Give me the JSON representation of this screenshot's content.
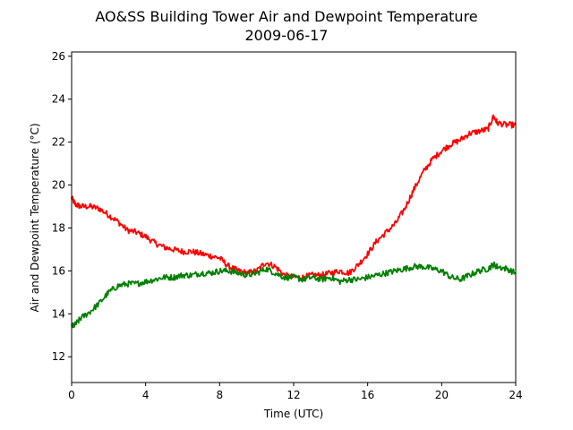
{
  "chart_data": {
    "type": "line",
    "title": "AO&SS Building Tower Air and Dewpoint Temperature",
    "subtitle": "2009-06-17",
    "xlabel": "Time (UTC)",
    "ylabel": "Air and Dewpoint Temperature (°C)",
    "xlim": [
      0,
      24
    ],
    "ylim": [
      10.8,
      26.2
    ],
    "xticks": [
      0,
      4,
      8,
      12,
      16,
      20,
      24
    ],
    "yticks": [
      12,
      14,
      16,
      18,
      20,
      22,
      24,
      26
    ],
    "grid": false,
    "legend": "none",
    "series": [
      {
        "color": "#ff0000",
        "x": [
          0,
          0.2,
          0.5,
          1,
          1.5,
          2,
          2.5,
          3,
          3.5,
          4,
          4.5,
          5,
          5.5,
          6,
          6.5,
          7,
          7.5,
          8,
          8.5,
          9,
          9.5,
          10,
          10.5,
          11,
          11.5,
          12,
          12.5,
          13,
          13.5,
          14,
          14.5,
          15,
          15.5,
          16,
          16.5,
          17,
          17.5,
          18,
          18.5,
          19,
          19.5,
          20,
          20.5,
          21,
          21.5,
          22,
          22.5,
          22.8,
          23,
          23.5,
          24
        ],
        "values": [
          19.4,
          19.1,
          19.0,
          19.0,
          18.9,
          18.6,
          18.3,
          17.9,
          17.8,
          17.6,
          17.3,
          17.1,
          17.0,
          16.9,
          16.9,
          16.8,
          16.7,
          16.6,
          16.2,
          16.0,
          15.9,
          16.0,
          16.4,
          16.2,
          15.8,
          15.7,
          15.7,
          15.8,
          15.8,
          15.9,
          16.0,
          15.9,
          16.3,
          16.8,
          17.4,
          17.8,
          18.2,
          18.9,
          19.8,
          20.6,
          21.2,
          21.6,
          21.9,
          22.1,
          22.4,
          22.5,
          22.6,
          23.2,
          22.9,
          22.8,
          22.8
        ]
      },
      {
        "color": "#008000",
        "x": [
          0,
          0.2,
          0.5,
          1,
          1.5,
          2,
          2.5,
          3,
          3.5,
          4,
          4.5,
          5,
          5.5,
          6,
          6.5,
          7,
          7.5,
          8,
          8.5,
          9,
          9.5,
          10,
          10.5,
          11,
          11.5,
          12,
          12.5,
          13,
          13.5,
          14,
          14.5,
          15,
          15.5,
          16,
          16.5,
          17,
          17.5,
          18,
          18.5,
          19,
          19.5,
          20,
          20.5,
          21,
          21.5,
          22,
          22.5,
          22.8,
          23,
          23.5,
          24
        ],
        "values": [
          13.4,
          13.5,
          13.8,
          14.1,
          14.5,
          15.0,
          15.3,
          15.4,
          15.4,
          15.5,
          15.6,
          15.7,
          15.7,
          15.8,
          15.8,
          15.9,
          15.9,
          16.0,
          16.0,
          15.9,
          15.8,
          15.9,
          16.1,
          15.9,
          15.7,
          15.7,
          15.6,
          15.7,
          15.6,
          15.7,
          15.5,
          15.6,
          15.6,
          15.7,
          15.8,
          15.9,
          16.0,
          16.1,
          16.2,
          16.2,
          16.1,
          16.0,
          15.7,
          15.6,
          15.8,
          16.0,
          16.1,
          16.3,
          16.2,
          16.1,
          15.9
        ]
      }
    ]
  }
}
